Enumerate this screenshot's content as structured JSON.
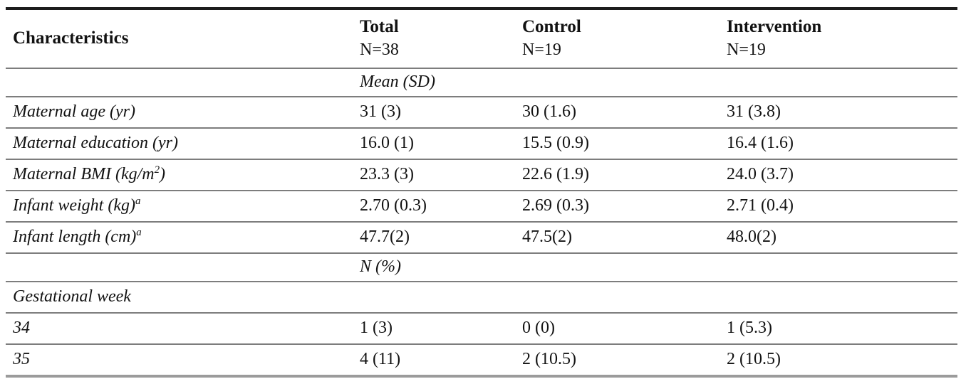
{
  "colors": {
    "top_rule": "#1d1d1d",
    "row_rule": "#7d7d7d",
    "bottom_rule": "#9b9b9b",
    "text": "#121212",
    "background": "#ffffff"
  },
  "table": {
    "header": {
      "characteristics": "Characteristics",
      "columns": [
        {
          "title": "Total",
          "n": "N=38"
        },
        {
          "title": "Control",
          "n": "N=19"
        },
        {
          "title": "Intervention",
          "n": "N=19"
        }
      ]
    },
    "rows": [
      {
        "pre": "",
        "sup": "",
        "post": "",
        "total": "Mean (SD)",
        "control": "",
        "intervention": ""
      },
      {
        "pre": "Maternal age (yr)",
        "sup": "",
        "post": "",
        "total": "31 (3)",
        "control": "30 (1.6)",
        "intervention": "31 (3.8)"
      },
      {
        "pre": "Maternal education (yr)",
        "sup": "",
        "post": "",
        "total": "16.0 (1)",
        "control": "15.5 (0.9)",
        "intervention": "16.4 (1.6)"
      },
      {
        "pre": "Maternal BMI (kg/m",
        "sup": "2",
        "post": ")",
        "total": "23.3 (3)",
        "control": "22.6 (1.9)",
        "intervention": "24.0 (3.7)"
      },
      {
        "pre": "Infant weight (kg)",
        "sup": "a",
        "post": "",
        "total": "2.70 (0.3)",
        "control": "2.69 (0.3)",
        "intervention": "2.71 (0.4)"
      },
      {
        "pre": "Infant length (cm)",
        "sup": "a",
        "post": "",
        "total": "47.7(2)",
        "control": "47.5(2)",
        "intervention": "48.0(2)"
      },
      {
        "pre": "",
        "sup": "",
        "post": "",
        "total": "N (%)",
        "control": "",
        "intervention": ""
      },
      {
        "pre": "Gestational week",
        "sup": "",
        "post": "",
        "total": "",
        "control": "",
        "intervention": ""
      },
      {
        "pre": "34",
        "sup": "",
        "post": "",
        "total": "1 (3)",
        "control": "0 (0)",
        "intervention": "1 (5.3)"
      },
      {
        "pre": "35",
        "sup": "",
        "post": "",
        "total": "4 (11)",
        "control": "2 (10.5)",
        "intervention": "2 (10.5)"
      }
    ]
  }
}
